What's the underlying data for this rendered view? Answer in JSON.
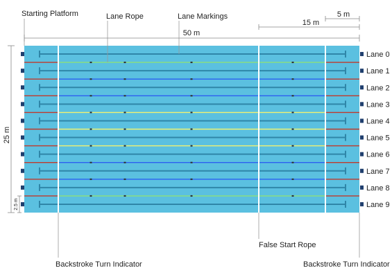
{
  "labels": {
    "starting_platform": "Starting Platform",
    "lane_rope": "Lane Rope",
    "lane_markings": "Lane Markings",
    "false_start_rope": "False Start Rope",
    "backstroke_left": "Backstroke Turn Indicator",
    "backstroke_right": "Backstroke Turn Indicator"
  },
  "dimensions": {
    "length": "50 m",
    "fifteen": "15 m",
    "five": "5 m",
    "width": "25 m",
    "lane_width": "2.5 m"
  },
  "lanes": [
    "Lane 0",
    "Lane 1",
    "Lane 2",
    "Lane 3",
    "Lane 4",
    "Lane 5",
    "Lane 6",
    "Lane 7",
    "Lane 8",
    "Lane 9"
  ],
  "rope_colors": [
    "red",
    "green",
    "blue",
    "blue",
    "yellow",
    "yellow",
    "yellow",
    "blue",
    "blue",
    "green",
    "red"
  ],
  "colors": {
    "water": "#5bc0e0",
    "lane_marking": "#2f86a8",
    "platform": "#1f3f6e",
    "dimension_line": "#888888",
    "rope_red": "#c0392b",
    "rope_green": "#8ee07a",
    "rope_blue": "#2c5ff0",
    "rope_yellow": "#f2f270",
    "indicator_line": "#ffffff"
  }
}
